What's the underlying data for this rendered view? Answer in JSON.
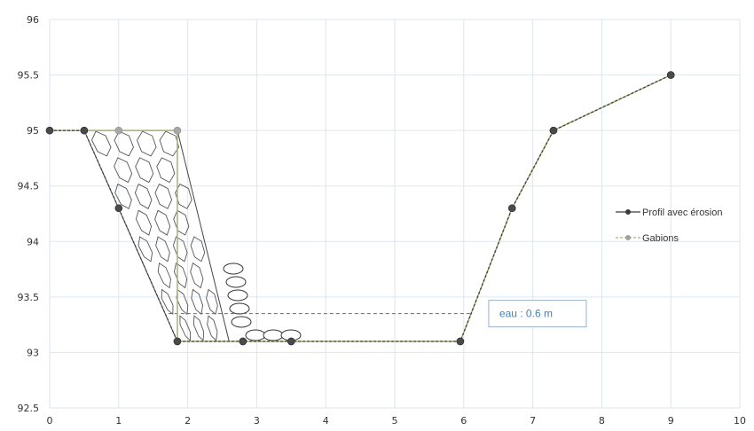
{
  "chart_data": {
    "type": "line",
    "title": "",
    "xlabel": "",
    "ylabel": "",
    "xlim": [
      0,
      10
    ],
    "ylim": [
      92.5,
      96
    ],
    "x_ticks": [
      "0",
      "1",
      "2",
      "3",
      "4",
      "5",
      "6",
      "7",
      "8",
      "9",
      "10"
    ],
    "y_ticks": [
      "92.5",
      "93",
      "93.5",
      "94",
      "94.5",
      "95",
      "95.5",
      "96"
    ],
    "grid": true,
    "legend_position": "right",
    "series": [
      {
        "name": "Profil avec érosion",
        "color": "#3a3a3a",
        "points": [
          [
            0,
            95
          ],
          [
            0.5,
            95
          ],
          [
            1,
            94.3
          ],
          [
            1.85,
            93.1
          ],
          [
            2.8,
            93.1
          ],
          [
            3.5,
            93.1
          ],
          [
            5.95,
            93.1
          ],
          [
            6.7,
            94.3
          ],
          [
            7.3,
            95
          ],
          [
            9,
            95.5
          ]
        ]
      },
      {
        "name": "Gabions",
        "color": "#a8b878",
        "points": [
          [
            0,
            95
          ],
          [
            0.5,
            95
          ],
          [
            1,
            95
          ],
          [
            1.85,
            95
          ],
          [
            1.85,
            93.1
          ],
          [
            2.8,
            93.1
          ],
          [
            3.5,
            93.1
          ],
          [
            5.95,
            93.1
          ],
          [
            6.7,
            94.3
          ],
          [
            7.3,
            95
          ],
          [
            9,
            95.5
          ]
        ]
      }
    ],
    "water_level": 93.35,
    "annotation": {
      "text": "eau : 0.6 m",
      "x": 6.4,
      "y": 93.35
    }
  }
}
